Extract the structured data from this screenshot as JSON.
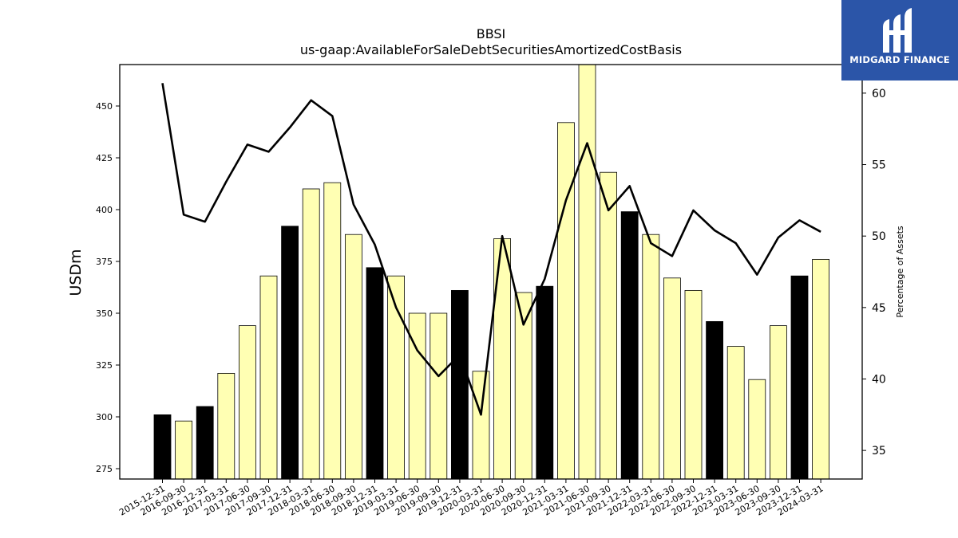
{
  "chart_data": {
    "type": "bar",
    "title": "BBSI",
    "subtitle": "us-gaap:AvailableForSaleDebtSecuritiesAmortizedCostBasis",
    "ylabel": "USDm",
    "ylabel_right": "Percentage of Assets",
    "ylim": [
      270,
      470
    ],
    "ylim_right": [
      33,
      62
    ],
    "yticks": [
      275,
      300,
      325,
      350,
      375,
      400,
      425,
      450
    ],
    "yticks_right": [
      35,
      40,
      45,
      50,
      55,
      60
    ],
    "grid": false,
    "colors": {
      "annual": "#000000",
      "quarterly": "#ffffb3",
      "line": "#000000"
    },
    "categories": [
      "2015-12-31",
      "2016-09-30",
      "2016-12-31",
      "2017-03-31",
      "2017-06-30",
      "2017-09-30",
      "2017-12-31",
      "2018-03-31",
      "2018-06-30",
      "2018-09-30",
      "2018-12-31",
      "2019-03-31",
      "2019-06-30",
      "2019-09-30",
      "2019-12-31",
      "2020-03-31",
      "2020-06-30",
      "2020-09-30",
      "2020-12-31",
      "2021-03-31",
      "2021-06-30",
      "2021-09-30",
      "2021-12-31",
      "2022-03-31",
      "2022-06-30",
      "2022-09-30",
      "2022-12-31",
      "2023-03-31",
      "2023-06-30",
      "2023-09-30",
      "2023-12-31",
      "2024-03-31"
    ],
    "series": [
      {
        "type": "bar",
        "values": [
          301,
          298,
          305,
          321,
          344,
          368,
          392,
          410,
          413,
          388,
          372,
          368,
          350,
          350,
          361,
          322,
          386,
          360,
          363,
          442,
          470,
          418,
          399,
          388,
          367,
          361,
          346,
          334,
          318,
          344,
          368,
          376
        ],
        "highlight": [
          true,
          false,
          true,
          false,
          false,
          false,
          true,
          false,
          false,
          false,
          true,
          false,
          false,
          false,
          true,
          false,
          false,
          false,
          true,
          false,
          false,
          false,
          true,
          false,
          false,
          false,
          true,
          false,
          false,
          false,
          true,
          false
        ]
      },
      {
        "type": "line",
        "axis": "right",
        "values": [
          60.7,
          51.5,
          51.0,
          53.8,
          56.4,
          55.9,
          57.6,
          59.5,
          58.4,
          52.2,
          49.4,
          45.0,
          42.0,
          40.2,
          41.7,
          37.5,
          50.0,
          43.8,
          47.0,
          52.5,
          56.5,
          51.8,
          53.5,
          49.5,
          48.6,
          51.8,
          50.4,
          49.5,
          47.3,
          49.9,
          51.1,
          50.3
        ]
      }
    ]
  },
  "logo": {
    "text": "MIDGARD FINANCE"
  }
}
